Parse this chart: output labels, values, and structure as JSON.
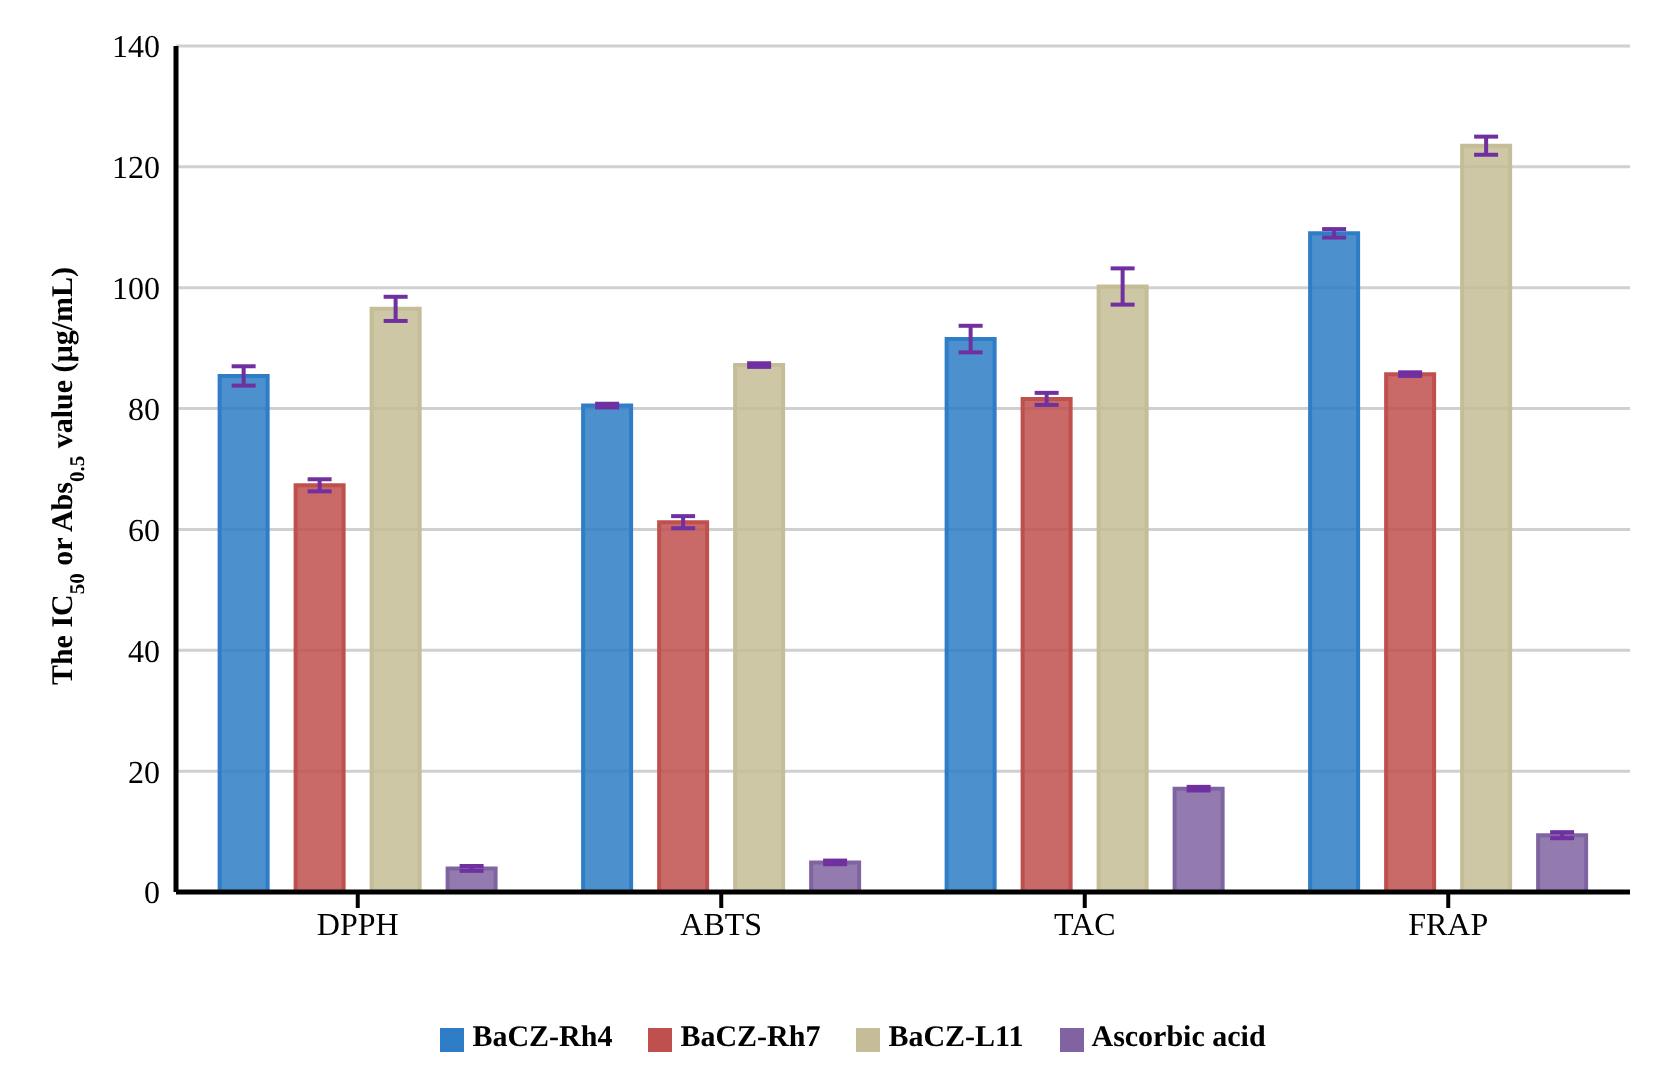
{
  "chart_data": {
    "type": "bar",
    "ylabel": "The IC$_{50}$ or Abs$_{0.5}$ value (µg/mL)",
    "categories": [
      "DPPH",
      "ABTS",
      "TAC",
      "FRAP"
    ],
    "series": [
      {
        "name": "BaCZ-Rh4",
        "color": "#2e7dc6",
        "values": [
          85.4,
          80.5,
          91.5,
          109
        ],
        "errors": [
          1.6,
          0.3,
          2.2,
          0.7
        ]
      },
      {
        "name": "BaCZ-Rh7",
        "color": "#c0504d",
        "values": [
          67.3,
          61.2,
          81.6,
          85.7
        ],
        "errors": [
          1,
          1,
          1,
          0.3
        ]
      },
      {
        "name": "BaCZ-L11",
        "color": "#c4bd97",
        "values": [
          96.5,
          87.2,
          100.2,
          123.5
        ],
        "errors": [
          2,
          0.3,
          3,
          1.5
        ]
      },
      {
        "name": "Ascorbic acid",
        "color": "#8064a2",
        "values": [
          3.9,
          4.9,
          17.1,
          9.4
        ],
        "errors": [
          0.4,
          0.3,
          0.3,
          0.5
        ]
      }
    ],
    "ylim": [
      0,
      140
    ],
    "yticks": [
      0,
      20,
      40,
      60,
      80,
      100,
      120,
      140
    ],
    "grid": "y",
    "legend": "bottom"
  }
}
